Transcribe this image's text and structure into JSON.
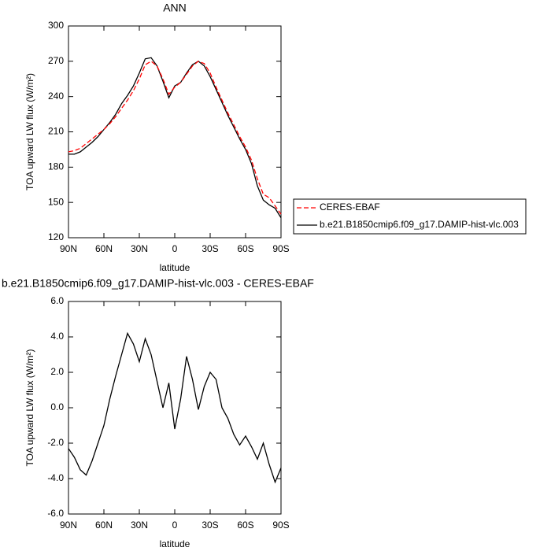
{
  "chart_data": [
    {
      "type": "line",
      "title": "ANN",
      "xlabel": "latitude",
      "ylabel": "TOA upward LW flux (W/m²)",
      "x": [
        90,
        85,
        80,
        75,
        70,
        65,
        60,
        55,
        50,
        45,
        40,
        35,
        30,
        25,
        20,
        15,
        10,
        5,
        0,
        -5,
        -10,
        -15,
        -20,
        -25,
        -30,
        -35,
        -40,
        -45,
        -50,
        -55,
        -60,
        -65,
        -70,
        -75,
        -80,
        -85,
        -90
      ],
      "xlim": [
        90,
        -90
      ],
      "xticks": [
        {
          "value": 90,
          "label": "90N"
        },
        {
          "value": 60,
          "label": "60N"
        },
        {
          "value": 30,
          "label": "30N"
        },
        0,
        {
          "value": -30,
          "label": "30S"
        },
        {
          "value": -60,
          "label": "60S"
        },
        {
          "value": -90,
          "label": "90S"
        }
      ],
      "ylim": [
        120,
        300
      ],
      "yticks": [
        120,
        150,
        180,
        210,
        240,
        270,
        300
      ],
      "series": [
        {
          "name": "CERES-EBAF",
          "color": "#ff0000",
          "dashed": true,
          "values": [
            193,
            194,
            196,
            200,
            204,
            208,
            212,
            217,
            223,
            230,
            237,
            245,
            255,
            267,
            270,
            266,
            255,
            242,
            248,
            252,
            259,
            266,
            270,
            268,
            260,
            248,
            237,
            226,
            216,
            206,
            197,
            186,
            170,
            157,
            154,
            147,
            140
          ]
        },
        {
          "name": "b.e21.B1850cmip6.f09_g17.DAMIP-hist-vlc.003",
          "color": "#000000",
          "dashed": false,
          "values": [
            191,
            191,
            193,
            197,
            201,
            206,
            212,
            218,
            225,
            234,
            241,
            249,
            260,
            272,
            273,
            266,
            253,
            239,
            249,
            252,
            260,
            267,
            270,
            266,
            257,
            246,
            235,
            224,
            214,
            204,
            195,
            183,
            164,
            152,
            148,
            145,
            137
          ]
        }
      ]
    },
    {
      "type": "line",
      "title": "b.e21.B1850cmip6.f09_g17.DAMIP-hist-vlc.003 - CERES-EBAF",
      "xlabel": "latitude",
      "ylabel": "TOA upward LW flux (W/m²)",
      "x": [
        90,
        85,
        80,
        75,
        70,
        65,
        60,
        55,
        50,
        45,
        40,
        35,
        30,
        25,
        20,
        15,
        10,
        5,
        0,
        -5,
        -10,
        -15,
        -20,
        -25,
        -30,
        -35,
        -40,
        -45,
        -50,
        -55,
        -60,
        -65,
        -70,
        -75,
        -80,
        -85,
        -90
      ],
      "xlim": [
        90,
        -90
      ],
      "xticks": [
        {
          "value": 90,
          "label": "90N"
        },
        {
          "value": 60,
          "label": "60N"
        },
        {
          "value": 30,
          "label": "30N"
        },
        0,
        {
          "value": -30,
          "label": "30S"
        },
        {
          "value": -60,
          "label": "60S"
        },
        {
          "value": -90,
          "label": "90S"
        }
      ],
      "ylim": [
        -6,
        6
      ],
      "yticks": [
        {
          "value": -6,
          "label": "-6.0"
        },
        {
          "value": -4,
          "label": "-4.0"
        },
        {
          "value": -2,
          "label": "-2.0"
        },
        {
          "value": 0,
          "label": "0.0"
        },
        {
          "value": 2,
          "label": "2.0"
        },
        {
          "value": 4,
          "label": "4.0"
        },
        {
          "value": 6,
          "label": "6.0"
        }
      ],
      "color": "#000000",
      "values": [
        -2.3,
        -2.8,
        -3.5,
        -3.8,
        -3.0,
        -2.0,
        -1.0,
        0.5,
        1.8,
        3.0,
        4.2,
        3.6,
        2.6,
        3.9,
        3.0,
        1.5,
        0.0,
        1.4,
        -1.2,
        0.5,
        2.9,
        1.6,
        -0.1,
        1.2,
        2.0,
        1.6,
        0.0,
        -0.6,
        -1.5,
        -2.1,
        -1.6,
        -2.2,
        -2.9,
        -2.0,
        -3.2,
        -4.2,
        -3.4
      ]
    }
  ]
}
